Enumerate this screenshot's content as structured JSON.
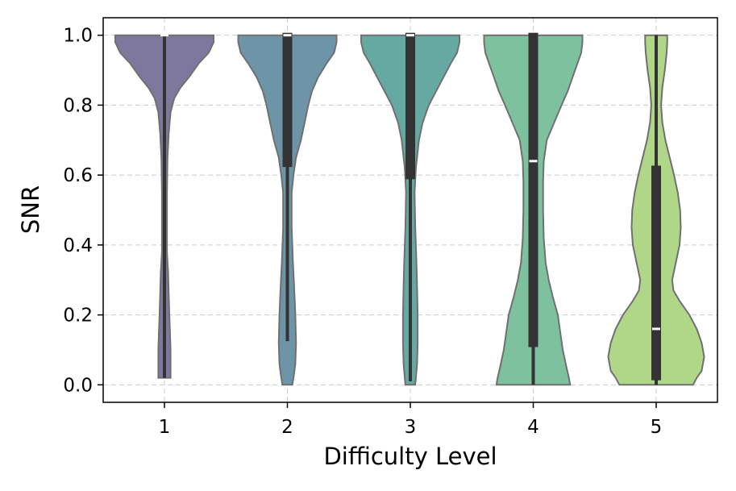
{
  "chart_data": {
    "type": "violin",
    "xlabel": "Difficulty Level",
    "ylabel": "SNR",
    "categories": [
      "1",
      "2",
      "3",
      "4",
      "5"
    ],
    "ylim": [
      -0.05,
      1.05
    ],
    "yticks": [
      0.0,
      0.2,
      0.4,
      0.6,
      0.8,
      1.0
    ],
    "ytick_labels": [
      "0.0",
      "0.2",
      "0.4",
      "0.6",
      "0.8",
      "1.0"
    ],
    "grid": true,
    "colors": [
      "#7e789e",
      "#6e94a8",
      "#66a9a2",
      "#7dc19f",
      "#b0d787"
    ],
    "violins": [
      {
        "category": "1",
        "min": 0.02,
        "q1": 1.0,
        "median": 1.0,
        "q3": 1.0,
        "max": 1.0,
        "profile": [
          [
            1.0,
            0.4
          ],
          [
            0.98,
            0.4
          ],
          [
            0.95,
            0.36
          ],
          [
            0.92,
            0.28
          ],
          [
            0.88,
            0.2
          ],
          [
            0.85,
            0.13
          ],
          [
            0.82,
            0.08
          ],
          [
            0.78,
            0.05
          ],
          [
            0.72,
            0.035
          ],
          [
            0.65,
            0.025
          ],
          [
            0.55,
            0.02
          ],
          [
            0.45,
            0.02
          ],
          [
            0.38,
            0.02
          ],
          [
            0.32,
            0.03
          ],
          [
            0.26,
            0.035
          ],
          [
            0.2,
            0.04
          ],
          [
            0.15,
            0.045
          ],
          [
            0.1,
            0.05
          ],
          [
            0.05,
            0.05
          ],
          [
            0.02,
            0.05
          ]
        ]
      },
      {
        "category": "2",
        "min": 0.125,
        "q1": 0.63,
        "median": 1.0,
        "q3": 1.0,
        "max": 1.0,
        "profile": [
          [
            1.0,
            0.4
          ],
          [
            0.98,
            0.4
          ],
          [
            0.95,
            0.38
          ],
          [
            0.92,
            0.32
          ],
          [
            0.88,
            0.25
          ],
          [
            0.84,
            0.2
          ],
          [
            0.8,
            0.17
          ],
          [
            0.75,
            0.14
          ],
          [
            0.7,
            0.11
          ],
          [
            0.65,
            0.07
          ],
          [
            0.6,
            0.05
          ],
          [
            0.55,
            0.035
          ],
          [
            0.45,
            0.035
          ],
          [
            0.35,
            0.045
          ],
          [
            0.28,
            0.055
          ],
          [
            0.2,
            0.065
          ],
          [
            0.12,
            0.07
          ],
          [
            0.06,
            0.065
          ],
          [
            0.02,
            0.05
          ],
          [
            0.0,
            0.04
          ]
        ]
      },
      {
        "category": "3",
        "min": 0.01,
        "q1": 0.595,
        "median": 1.0,
        "q3": 1.0,
        "max": 1.0,
        "profile": [
          [
            1.0,
            0.4
          ],
          [
            0.98,
            0.4
          ],
          [
            0.95,
            0.38
          ],
          [
            0.92,
            0.33
          ],
          [
            0.88,
            0.27
          ],
          [
            0.84,
            0.21
          ],
          [
            0.8,
            0.15
          ],
          [
            0.75,
            0.1
          ],
          [
            0.7,
            0.07
          ],
          [
            0.62,
            0.045
          ],
          [
            0.55,
            0.035
          ],
          [
            0.45,
            0.04
          ],
          [
            0.35,
            0.05
          ],
          [
            0.28,
            0.055
          ],
          [
            0.2,
            0.06
          ],
          [
            0.12,
            0.06
          ],
          [
            0.06,
            0.055
          ],
          [
            0.02,
            0.045
          ],
          [
            0.0,
            0.04
          ]
        ]
      },
      {
        "category": "4",
        "min": 0.0,
        "q1": 0.115,
        "median": 0.64,
        "q3": 1.0,
        "max": 1.0,
        "profile": [
          [
            1.0,
            0.4
          ],
          [
            0.98,
            0.4
          ],
          [
            0.95,
            0.39
          ],
          [
            0.92,
            0.36
          ],
          [
            0.88,
            0.32
          ],
          [
            0.84,
            0.28
          ],
          [
            0.8,
            0.23
          ],
          [
            0.75,
            0.17
          ],
          [
            0.7,
            0.11
          ],
          [
            0.64,
            0.085
          ],
          [
            0.58,
            0.08
          ],
          [
            0.5,
            0.08
          ],
          [
            0.42,
            0.085
          ],
          [
            0.35,
            0.1
          ],
          [
            0.3,
            0.125
          ],
          [
            0.25,
            0.16
          ],
          [
            0.2,
            0.2
          ],
          [
            0.15,
            0.22
          ],
          [
            0.1,
            0.24
          ],
          [
            0.05,
            0.27
          ],
          [
            0.02,
            0.29
          ],
          [
            0.0,
            0.3
          ]
        ]
      },
      {
        "category": "5",
        "min": 0.0,
        "q1": 0.02,
        "median": 0.16,
        "q3": 0.62,
        "max": 1.0,
        "profile": [
          [
            1.0,
            0.09
          ],
          [
            0.98,
            0.09
          ],
          [
            0.95,
            0.085
          ],
          [
            0.9,
            0.07
          ],
          [
            0.85,
            0.05
          ],
          [
            0.8,
            0.04
          ],
          [
            0.75,
            0.05
          ],
          [
            0.7,
            0.075
          ],
          [
            0.65,
            0.11
          ],
          [
            0.6,
            0.145
          ],
          [
            0.55,
            0.175
          ],
          [
            0.5,
            0.195
          ],
          [
            0.45,
            0.2
          ],
          [
            0.4,
            0.19
          ],
          [
            0.35,
            0.16
          ],
          [
            0.3,
            0.13
          ],
          [
            0.27,
            0.14
          ],
          [
            0.24,
            0.19
          ],
          [
            0.2,
            0.27
          ],
          [
            0.16,
            0.33
          ],
          [
            0.12,
            0.37
          ],
          [
            0.08,
            0.39
          ],
          [
            0.04,
            0.37
          ],
          [
            0.02,
            0.33
          ],
          [
            0.0,
            0.3
          ]
        ]
      }
    ]
  }
}
